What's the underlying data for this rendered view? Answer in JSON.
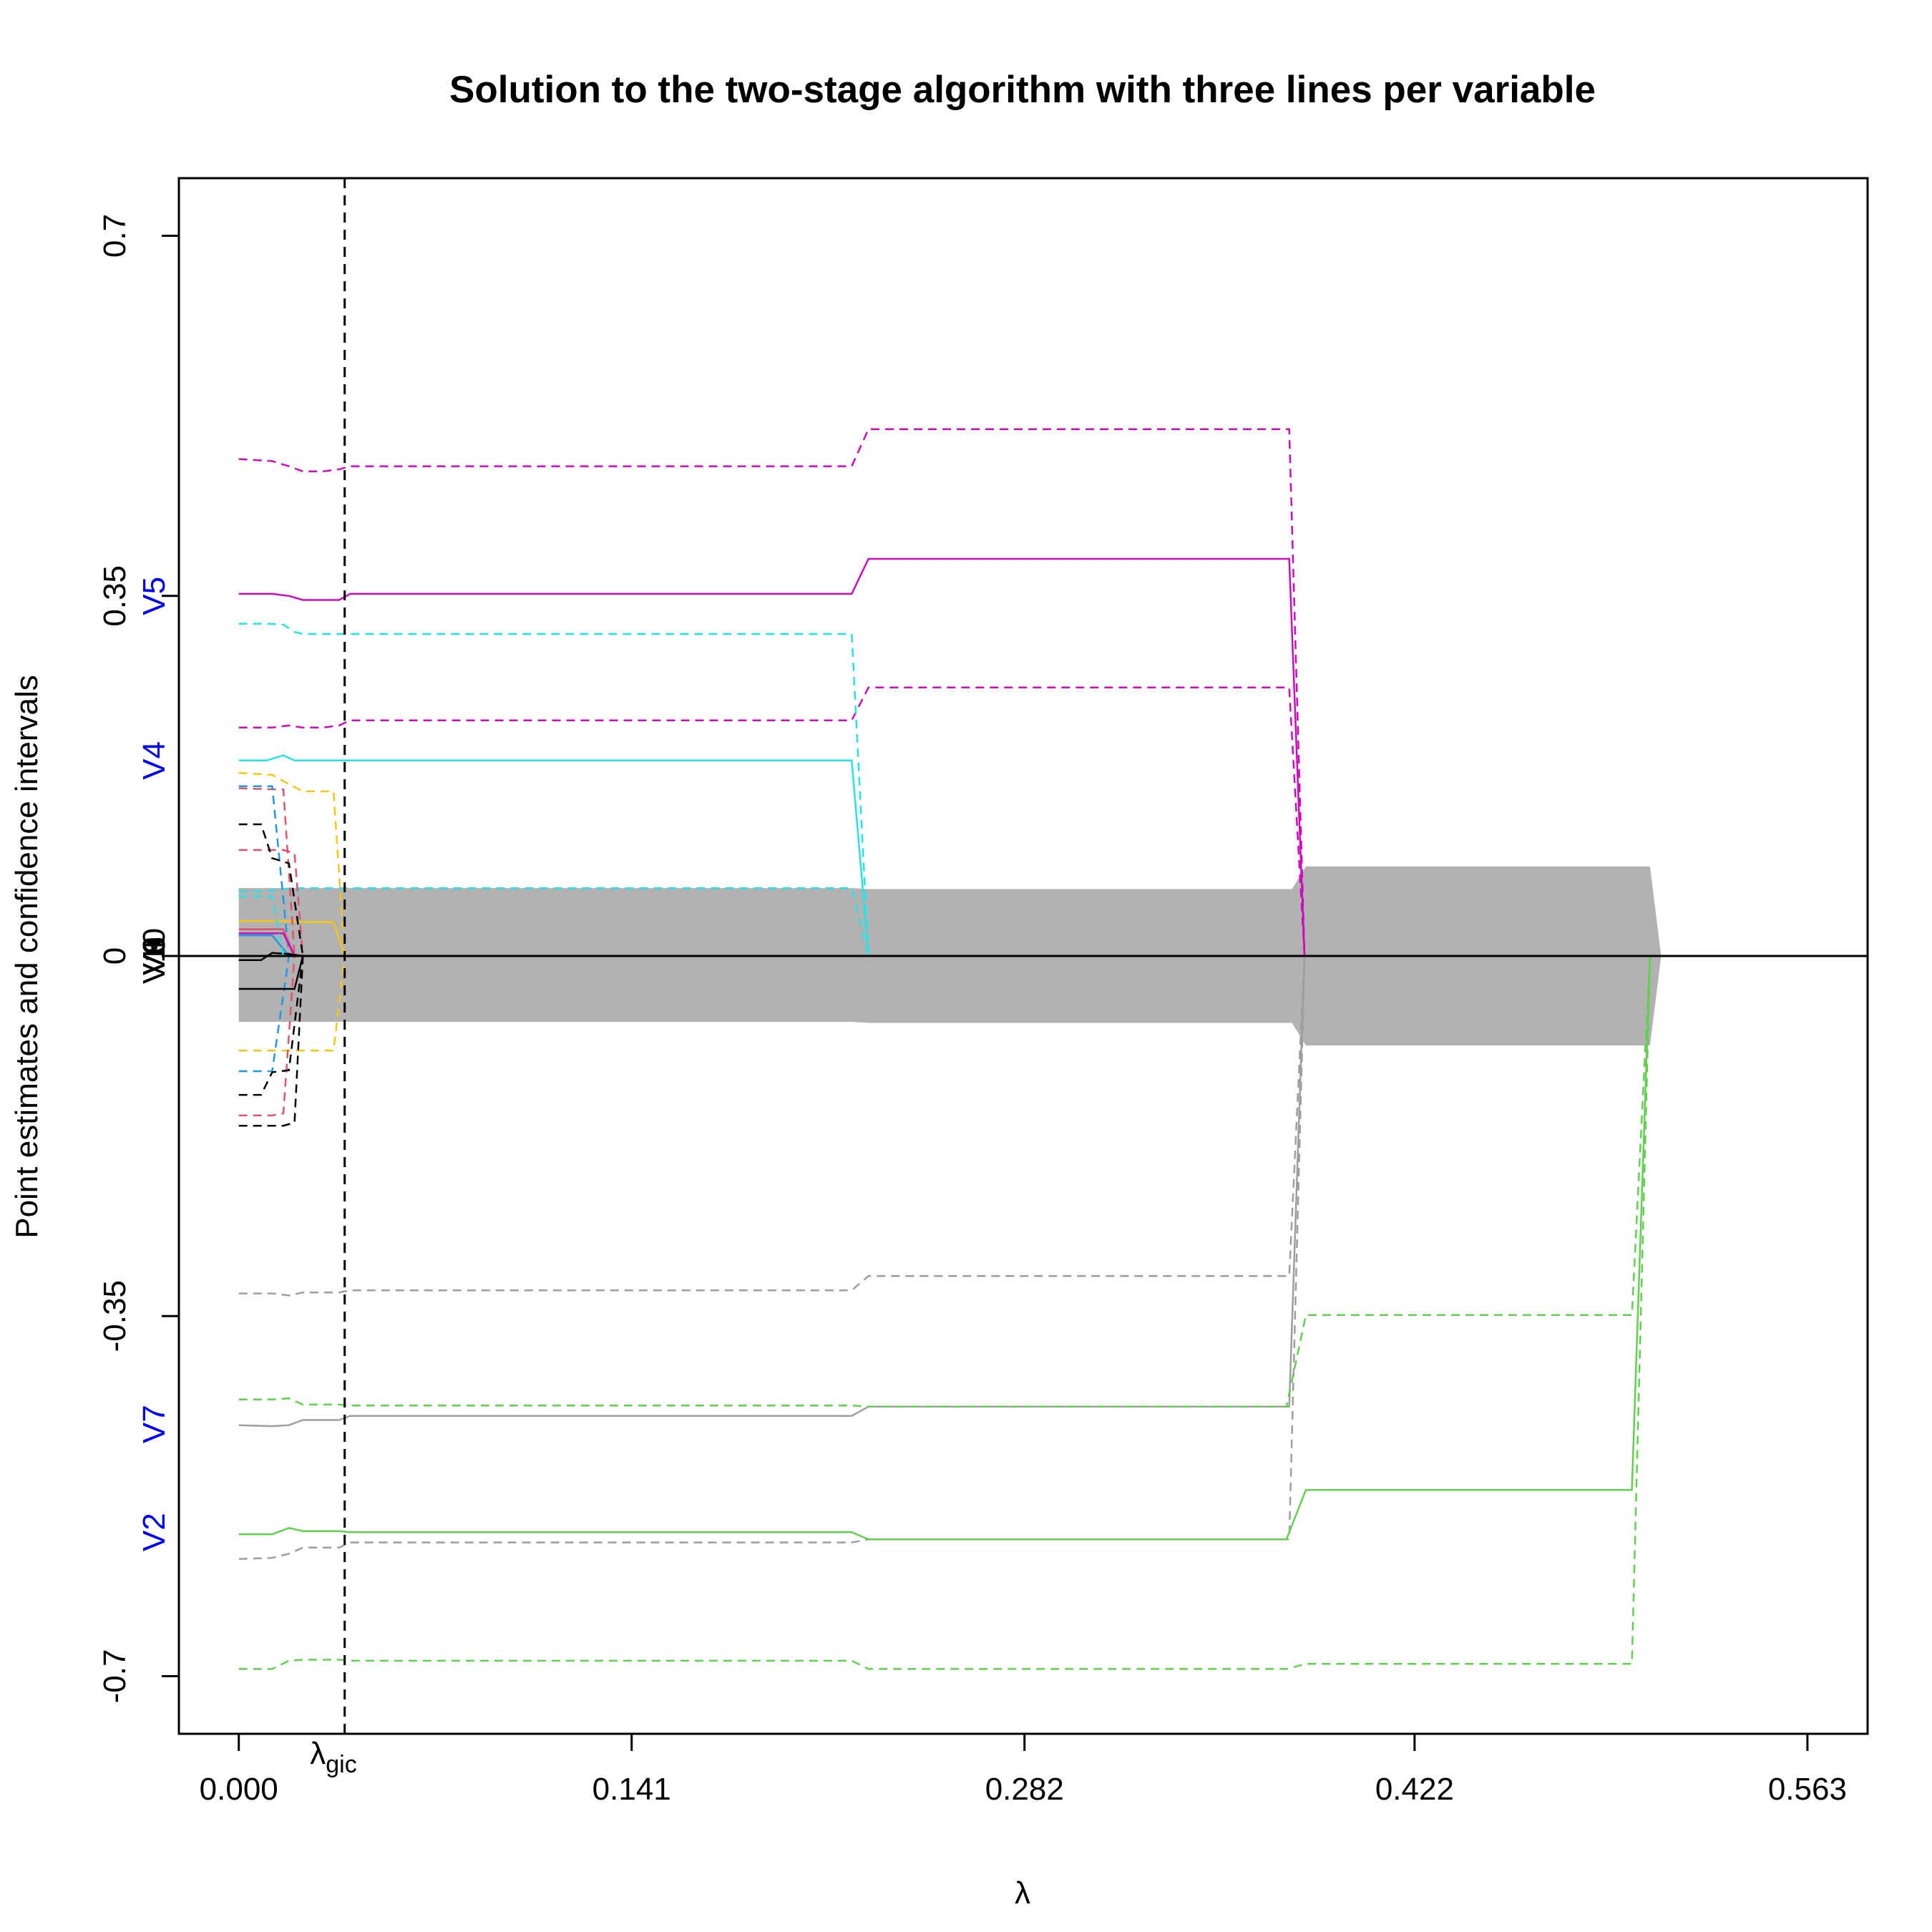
{
  "chart_data": {
    "type": "line",
    "title": "Solution to the two-stage algorithm with three lines per variable",
    "xlabel": "λ",
    "ylabel": "Point estimates and confidence intervals",
    "xlim": [
      -0.0215,
      0.5846
    ],
    "ylim": [
      -0.756,
      0.756
    ],
    "x_ticks": [
      "0.000",
      "0.141",
      "0.282",
      "0.422",
      "0.563"
    ],
    "x_tick_values": [
      0.0,
      0.141,
      0.282,
      0.422,
      0.563
    ],
    "y_ticks": [
      "0.7",
      "0.35",
      "0",
      "-0.35",
      "-0.7"
    ],
    "y_tick_values": [
      0.7,
      0.35,
      0.0,
      -0.35,
      -0.7
    ],
    "lambda_gic": {
      "value": 0.038,
      "label_main": "λ",
      "label_sub": "gic"
    },
    "zero_line": 0,
    "grey_band_color": "#b2b2b2",
    "grey_band": {
      "x": [
        0,
        0.22,
        0.226,
        0.378,
        0.383,
        0.5,
        0.5065,
        0.5105,
        0.5065,
        0.5,
        0.383,
        0.378,
        0.226,
        0.22,
        0
      ],
      "y": [
        0.066,
        0.066,
        0.065,
        0.065,
        0.087,
        0.087,
        0.087,
        0,
        -0.087,
        -0.087,
        -0.087,
        -0.065,
        -0.065,
        -0.064,
        -0.064
      ]
    },
    "variable_labels": [
      {
        "text": "V5",
        "y": 0.35,
        "color": "#0000ff"
      },
      {
        "text": "V4",
        "y": 0.19,
        "color": "#0000ff"
      },
      {
        "text": "V7",
        "y": -0.455,
        "color": "#0000ff"
      },
      {
        "text": "V2",
        "y": -0.56,
        "color": "#0000ff"
      },
      {
        "text": "V1",
        "y": 0.0,
        "color": "#000000"
      },
      {
        "text": "V3",
        "y": 0.0,
        "color": "#000000"
      },
      {
        "text": "V6",
        "y": 0.0,
        "color": "#000000"
      },
      {
        "text": "V8",
        "y": 0.0,
        "color": "#000000"
      },
      {
        "text": "V9",
        "y": 0.0,
        "color": "#000000"
      },
      {
        "text": "V10",
        "y": 0.0,
        "color": "#000000"
      }
    ],
    "series": [
      {
        "color": "#cd0bbc",
        "dash": false,
        "x": [
          0,
          0.012,
          0.018,
          0.023,
          0.03,
          0.036,
          0.04,
          0.22,
          0.226,
          0.377,
          0.3825
        ],
        "y": [
          0.352,
          0.352,
          0.35,
          0.346,
          0.346,
          0.346,
          0.352,
          0.352,
          0.386,
          0.386,
          0
        ]
      },
      {
        "color": "#cd0bbc",
        "dash": true,
        "x": [
          0,
          0.012,
          0.018,
          0.023,
          0.03,
          0.036,
          0.04,
          0.22,
          0.226,
          0.377,
          0.3825
        ],
        "y": [
          0.483,
          0.481,
          0.476,
          0.471,
          0.471,
          0.473,
          0.476,
          0.476,
          0.512,
          0.512,
          0
        ]
      },
      {
        "color": "#cd0bbc",
        "dash": true,
        "x": [
          0,
          0.012,
          0.018,
          0.023,
          0.03,
          0.036,
          0.04,
          0.22,
          0.226,
          0.377,
          0.3825
        ],
        "y": [
          0.222,
          0.222,
          0.224,
          0.222,
          0.222,
          0.224,
          0.229,
          0.229,
          0.261,
          0.261,
          0
        ]
      },
      {
        "color": "#28e2e5",
        "dash": false,
        "x": [
          0,
          0.01,
          0.016,
          0.02,
          0.023,
          0.04,
          0.22,
          0.226
        ],
        "y": [
          0.19,
          0.19,
          0.195,
          0.19,
          0.19,
          0.19,
          0.19,
          0
        ]
      },
      {
        "color": "#28e2e5",
        "dash": true,
        "x": [
          0,
          0.01,
          0.016,
          0.02,
          0.023,
          0.04,
          0.22,
          0.226
        ],
        "y": [
          0.323,
          0.323,
          0.322,
          0.315,
          0.313,
          0.313,
          0.313,
          0
        ]
      },
      {
        "color": "#28e2e5",
        "dash": true,
        "x": [
          0,
          0.01,
          0.016,
          0.02,
          0.023,
          0.04,
          0.22,
          0.226
        ],
        "y": [
          0.063,
          0.063,
          0.065,
          0.066,
          0.066,
          0.066,
          0.066,
          0
        ]
      },
      {
        "color": "#9e9e9e",
        "dash": false,
        "x": [
          0,
          0.012,
          0.018,
          0.023,
          0.03,
          0.036,
          0.04,
          0.22,
          0.226,
          0.377,
          0.3825
        ],
        "y": [
          -0.456,
          -0.457,
          -0.456,
          -0.451,
          -0.451,
          -0.451,
          -0.447,
          -0.447,
          -0.438,
          -0.438,
          0
        ]
      },
      {
        "color": "#9e9e9e",
        "dash": true,
        "x": [
          0,
          0.012,
          0.018,
          0.023,
          0.03,
          0.036,
          0.04,
          0.22,
          0.226,
          0.377,
          0.3825
        ],
        "y": [
          -0.328,
          -0.328,
          -0.33,
          -0.327,
          -0.327,
          -0.327,
          -0.325,
          -0.325,
          -0.311,
          -0.311,
          0
        ]
      },
      {
        "color": "#9e9e9e",
        "dash": true,
        "x": [
          0,
          0.012,
          0.018,
          0.023,
          0.03,
          0.036,
          0.04,
          0.22,
          0.226,
          0.377,
          0.3825
        ],
        "y": [
          -0.586,
          -0.585,
          -0.581,
          -0.575,
          -0.575,
          -0.575,
          -0.57,
          -0.57,
          -0.567,
          -0.567,
          0
        ]
      },
      {
        "color": "#61d04f",
        "dash": false,
        "x": [
          0,
          0.012,
          0.018,
          0.023,
          0.03,
          0.036,
          0.04,
          0.22,
          0.226,
          0.376,
          0.383,
          0.5,
          0.5065
        ],
        "y": [
          -0.562,
          -0.562,
          -0.556,
          -0.559,
          -0.559,
          -0.559,
          -0.56,
          -0.56,
          -0.567,
          -0.567,
          -0.519,
          -0.519,
          0
        ]
      },
      {
        "color": "#61d04f",
        "dash": true,
        "x": [
          0,
          0.012,
          0.018,
          0.023,
          0.03,
          0.036,
          0.04,
          0.22,
          0.226,
          0.376,
          0.383,
          0.5,
          0.5065
        ],
        "y": [
          -0.693,
          -0.693,
          -0.685,
          -0.684,
          -0.684,
          -0.684,
          -0.685,
          -0.685,
          -0.693,
          -0.693,
          -0.688,
          -0.688,
          0
        ]
      },
      {
        "color": "#61d04f",
        "dash": true,
        "x": [
          0,
          0.012,
          0.018,
          0.023,
          0.03,
          0.036,
          0.04,
          0.22,
          0.226,
          0.376,
          0.383,
          0.5,
          0.5065
        ],
        "y": [
          -0.431,
          -0.431,
          -0.43,
          -0.436,
          -0.436,
          -0.436,
          -0.437,
          -0.437,
          -0.438,
          -0.438,
          -0.349,
          -0.349,
          0
        ]
      },
      {
        "color": "#f5c710",
        "dash": false,
        "x": [
          0,
          0.012,
          0.018,
          0.023,
          0.03,
          0.034,
          0.038
        ],
        "y": [
          0.034,
          0.034,
          0.034,
          0.033,
          0.033,
          0.033,
          0
        ]
      },
      {
        "color": "#f5c710",
        "dash": true,
        "x": [
          0,
          0.012,
          0.018,
          0.023,
          0.03,
          0.034,
          0.038
        ],
        "y": [
          0.178,
          0.176,
          0.167,
          0.16,
          0.16,
          0.16,
          0
        ]
      },
      {
        "color": "#f5c710",
        "dash": true,
        "x": [
          0,
          0.012,
          0.018,
          0.023,
          0.03,
          0.034,
          0.038
        ],
        "y": [
          -0.092,
          -0.092,
          -0.092,
          -0.092,
          -0.092,
          -0.092,
          0
        ]
      },
      {
        "color": "#df536b",
        "dash": false,
        "x": [
          0,
          0.012,
          0.016,
          0.02
        ],
        "y": [
          0.026,
          0.026,
          0.026,
          0
        ]
      },
      {
        "color": "#df536b",
        "dash": true,
        "x": [
          0,
          0.012,
          0.016,
          0.02
        ],
        "y": [
          0.163,
          0.162,
          0.162,
          0
        ]
      },
      {
        "color": "#df536b",
        "dash": true,
        "x": [
          0,
          0.012,
          0.016,
          0.02
        ],
        "y": [
          -0.155,
          -0.155,
          -0.153,
          0
        ]
      },
      {
        "color": "#2297e6",
        "dash": false,
        "x": [
          0,
          0.012,
          0.018
        ],
        "y": [
          0.02,
          0.02,
          0
        ]
      },
      {
        "color": "#2297e6",
        "dash": true,
        "x": [
          0,
          0.012,
          0.018
        ],
        "y": [
          0.165,
          0.165,
          0
        ]
      },
      {
        "color": "#2297e6",
        "dash": true,
        "x": [
          0,
          0.012,
          0.018
        ],
        "y": [
          -0.112,
          -0.112,
          0
        ]
      },
      {
        "color": "#cd0bbc",
        "dash": false,
        "x": [
          0,
          0.012,
          0.016,
          0.02
        ],
        "y": [
          0.022,
          0.022,
          0.022,
          0
        ]
      },
      {
        "color": "#df536b",
        "dash": true,
        "x": [
          0,
          0.016,
          0.02,
          0.023
        ],
        "y": [
          0.103,
          0.103,
          0.1,
          0
        ]
      },
      {
        "color": "#000000",
        "dash": false,
        "x": [
          0,
          0.008,
          0.012,
          0.018,
          0.023
        ],
        "y": [
          -0.004,
          -0.004,
          0.003,
          0.002,
          0
        ]
      },
      {
        "color": "#000000",
        "dash": true,
        "x": [
          0,
          0.008,
          0.012,
          0.018,
          0.023
        ],
        "y": [
          0.128,
          0.128,
          0.095,
          0.09,
          0
        ]
      },
      {
        "color": "#000000",
        "dash": true,
        "x": [
          0,
          0.008,
          0.012,
          0.018,
          0.023
        ],
        "y": [
          -0.135,
          -0.135,
          -0.113,
          -0.111,
          0
        ]
      },
      {
        "color": "#000000",
        "dash": false,
        "x": [
          0,
          0.016,
          0.02,
          0.023
        ],
        "y": [
          -0.032,
          -0.032,
          -0.032,
          0
        ]
      },
      {
        "color": "#000000",
        "dash": true,
        "x": [
          0,
          0.016,
          0.02,
          0.023
        ],
        "y": [
          -0.165,
          -0.165,
          -0.162,
          0
        ]
      },
      {
        "color": "#28e2e5",
        "dash": true,
        "x": [
          0,
          0.012,
          0.016
        ],
        "y": [
          0.058,
          0.058,
          0
        ]
      }
    ]
  }
}
